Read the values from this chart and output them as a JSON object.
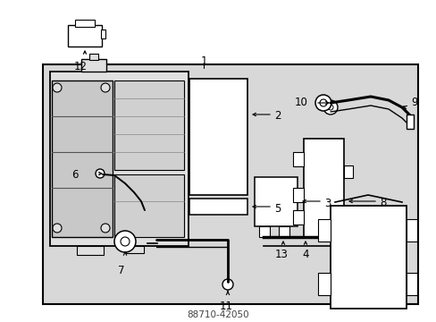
{
  "bg_color": "#ffffff",
  "box_bg": "#d8d8d8",
  "line_color": "#000000",
  "part_number": "88710-42050"
}
